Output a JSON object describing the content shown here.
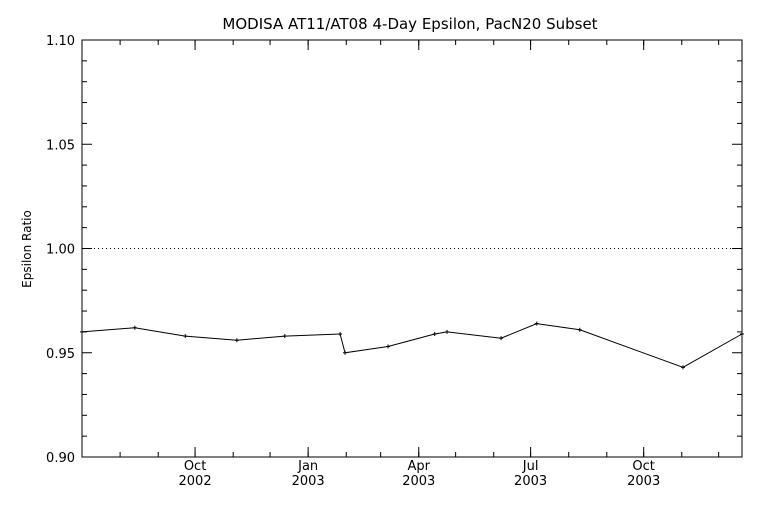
{
  "chart_data": {
    "type": "line",
    "title": "MODISA AT11/AT08 4-Day Epsilon, PacN20 Subset",
    "xlabel": "",
    "ylabel": "Epsilon Ratio",
    "xlim": [
      "2002-07-01",
      "2003-12-20"
    ],
    "ylim": [
      0.9,
      1.1
    ],
    "yticks": [
      "0.90",
      "0.95",
      "1.00",
      "1.05",
      "1.10"
    ],
    "xticks": [
      {
        "date": "2002-10-01",
        "label": "Oct",
        "year": "2002"
      },
      {
        "date": "2003-01-01",
        "label": "Jan",
        "year": "2003"
      },
      {
        "date": "2003-04-01",
        "label": "Apr",
        "year": "2003"
      },
      {
        "date": "2003-07-01",
        "label": "Jul",
        "year": "2003"
      },
      {
        "date": "2003-10-01",
        "label": "Oct",
        "year": "2003"
      }
    ],
    "reference_line": {
      "y": 1.0,
      "style": "dotted"
    },
    "grid": false,
    "series": [
      {
        "x": [
          "2002-07-01",
          "2002-08-13",
          "2002-09-23",
          "2002-11-04",
          "2002-12-13",
          "2003-01-27",
          "2003-01-31",
          "2003-03-07",
          "2003-04-14",
          "2003-04-24",
          "2003-06-07",
          "2003-07-06",
          "2003-08-10",
          "2003-11-02",
          "2003-12-20"
        ],
        "y": [
          0.96,
          0.962,
          0.958,
          0.956,
          0.958,
          0.959,
          0.95,
          0.953,
          0.959,
          0.96,
          0.957,
          0.964,
          0.961,
          0.943,
          0.959
        ]
      }
    ],
    "colors": {
      "line": "#000000",
      "axis": "#000000",
      "background": "#ffffff"
    }
  }
}
